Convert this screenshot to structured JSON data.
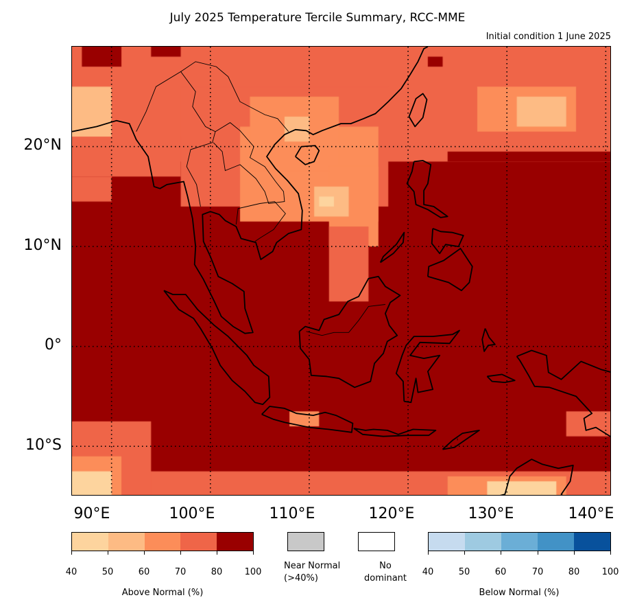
{
  "header": {
    "title": "July 2025 Temperature Tercile Summary, RCC-MME",
    "subtitle": "Initial condition 1 June 2025"
  },
  "map": {
    "region": "Southeast Asia",
    "lon_range": [
      86,
      140.6
    ],
    "lat_range": [
      -15,
      30
    ],
    "grid_lines": "dotted",
    "land_outline_color": "#000000",
    "lat_ticks": [
      {
        "value": 20,
        "label": "20°N"
      },
      {
        "value": 10,
        "label": "10°N"
      },
      {
        "value": 0,
        "label": "0°"
      },
      {
        "value": -10,
        "label": "10°S"
      }
    ],
    "lon_ticks": [
      {
        "value": 90,
        "label": "90°E"
      },
      {
        "value": 100,
        "label": "100°E"
      },
      {
        "value": 110,
        "label": "110°E"
      },
      {
        "value": 120,
        "label": "120°E"
      },
      {
        "value": 130,
        "label": "130°E"
      },
      {
        "value": 140,
        "label": "140°E"
      }
    ],
    "dominant_tercile": "Above Normal",
    "category_colors": [
      "#fdd49e",
      "#fdbb84",
      "#fc8d59",
      "#ef6548",
      "#990000"
    ]
  },
  "legend": {
    "above": {
      "title": "Above Normal (%)",
      "ticks": [
        "40",
        "50",
        "60",
        "70",
        "80",
        "100"
      ],
      "colors": [
        "#fdd49e",
        "#fdbb84",
        "#fc8d59",
        "#ef6548",
        "#990000"
      ]
    },
    "near": {
      "label_line1": "Near Normal",
      "label_line2": "(>40%)",
      "color": "#c8c8c8"
    },
    "none": {
      "label_line1": "No",
      "label_line2": "dominant",
      "color": "#ffffff"
    },
    "below": {
      "title": "Below Normal (%)",
      "ticks": [
        "40",
        "50",
        "60",
        "70",
        "80",
        "100"
      ],
      "colors": [
        "#c6dbef",
        "#9ecae1",
        "#6baed6",
        "#4292c6",
        "#08519c"
      ]
    }
  }
}
